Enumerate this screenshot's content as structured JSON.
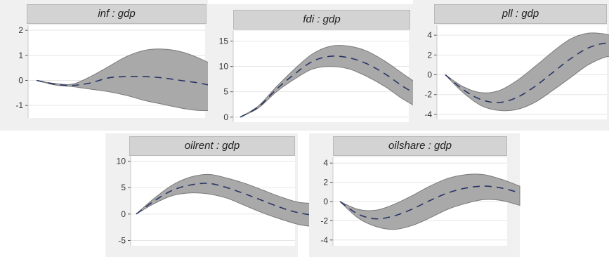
{
  "chart_data": [
    {
      "type": "area",
      "title": "inf : gdp",
      "ylim": [
        -1.5,
        2.2
      ],
      "yticks": [
        2,
        1,
        0,
        -1
      ],
      "x": [
        0,
        1,
        2,
        3,
        4,
        5,
        6,
        7,
        8,
        9,
        10
      ],
      "series": [
        {
          "median": [
            0,
            -0.15,
            -0.2,
            -0.1,
            0.1,
            0.15,
            0.15,
            0.1,
            0,
            -0.1,
            -0.25
          ],
          "upper": [
            0,
            -0.12,
            -0.15,
            0.15,
            0.55,
            0.95,
            1.2,
            1.25,
            1.15,
            0.9,
            0.55
          ],
          "lower": [
            0,
            -0.18,
            -0.25,
            -0.35,
            -0.45,
            -0.6,
            -0.8,
            -0.95,
            -1.1,
            -1.2,
            -1.2
          ]
        }
      ],
      "grid": true
    },
    {
      "type": "area",
      "title": "fdi : gdp",
      "ylim": [
        -1,
        17
      ],
      "yticks": [
        15,
        10,
        5,
        0
      ],
      "x": [
        0,
        1,
        2,
        3,
        4,
        5,
        6,
        7,
        8,
        9,
        10
      ],
      "series": [
        {
          "median": [
            0,
            2,
            5.5,
            8.5,
            11,
            12,
            11.7,
            10.5,
            8.5,
            6,
            4
          ],
          "upper": [
            0,
            2.2,
            6,
            9.5,
            12.5,
            14,
            14,
            13,
            11,
            8.5,
            6
          ],
          "lower": [
            0,
            1.8,
            5,
            7.5,
            9.5,
            10,
            9.5,
            8,
            6,
            3.5,
            1.5
          ]
        }
      ],
      "grid": true
    },
    {
      "type": "area",
      "title": "pll : gdp",
      "ylim": [
        -4.5,
        5
      ],
      "yticks": [
        4,
        2,
        0,
        -2,
        -4
      ],
      "x": [
        0,
        1,
        2,
        3,
        4,
        5,
        6,
        7,
        8,
        9,
        10
      ],
      "series": [
        {
          "median": [
            0,
            -1.5,
            -2.5,
            -2.8,
            -2.3,
            -1.2,
            0.2,
            1.6,
            2.7,
            3.2,
            3
          ],
          "upper": [
            0,
            -1.2,
            -1.8,
            -1.6,
            -0.6,
            0.8,
            2.3,
            3.6,
            4.2,
            4.1,
            3.6
          ],
          "lower": [
            0,
            -1.8,
            -3.1,
            -3.6,
            -3.5,
            -2.8,
            -1.6,
            -0.3,
            1,
            1.8,
            2
          ]
        }
      ],
      "grid": true
    },
    {
      "type": "area",
      "title": "oilrent : gdp",
      "ylim": [
        -6,
        11
      ],
      "yticks": [
        10,
        5,
        0,
        -5
      ],
      "x": [
        0,
        1,
        2,
        3,
        4,
        5,
        6,
        7,
        8,
        9,
        10
      ],
      "series": [
        {
          "median": [
            0,
            2.5,
            4.5,
            5.5,
            5.8,
            5,
            3.8,
            2.5,
            1.2,
            0.2,
            -0.3
          ],
          "upper": [
            0,
            3,
            5.5,
            7,
            7.5,
            6.8,
            5.8,
            4.5,
            3.2,
            2.2,
            2
          ],
          "lower": [
            0,
            2,
            3.5,
            4,
            3.8,
            3,
            1.6,
            0.2,
            -1,
            -2,
            -2.5
          ]
        }
      ],
      "grid": true
    },
    {
      "type": "area",
      "title": "oilshare : gdp",
      "ylim": [
        -4.6,
        4.6
      ],
      "yticks": [
        4,
        2,
        0,
        -2,
        -4
      ],
      "x": [
        0,
        1,
        2,
        3,
        4,
        5,
        6,
        7,
        8,
        9,
        10
      ],
      "series": [
        {
          "median": [
            0,
            -1.3,
            -1.8,
            -1.5,
            -0.8,
            0.1,
            0.9,
            1.4,
            1.6,
            1.4,
            0.9
          ],
          "upper": [
            0,
            -0.8,
            -0.9,
            -0.3,
            0.6,
            1.6,
            2.4,
            2.8,
            2.8,
            2.3,
            1.6
          ],
          "lower": [
            0,
            -1.7,
            -2.6,
            -2.9,
            -2.5,
            -1.7,
            -0.8,
            -0.2,
            0.2,
            0.1,
            -0.4
          ]
        }
      ],
      "grid": true
    }
  ]
}
